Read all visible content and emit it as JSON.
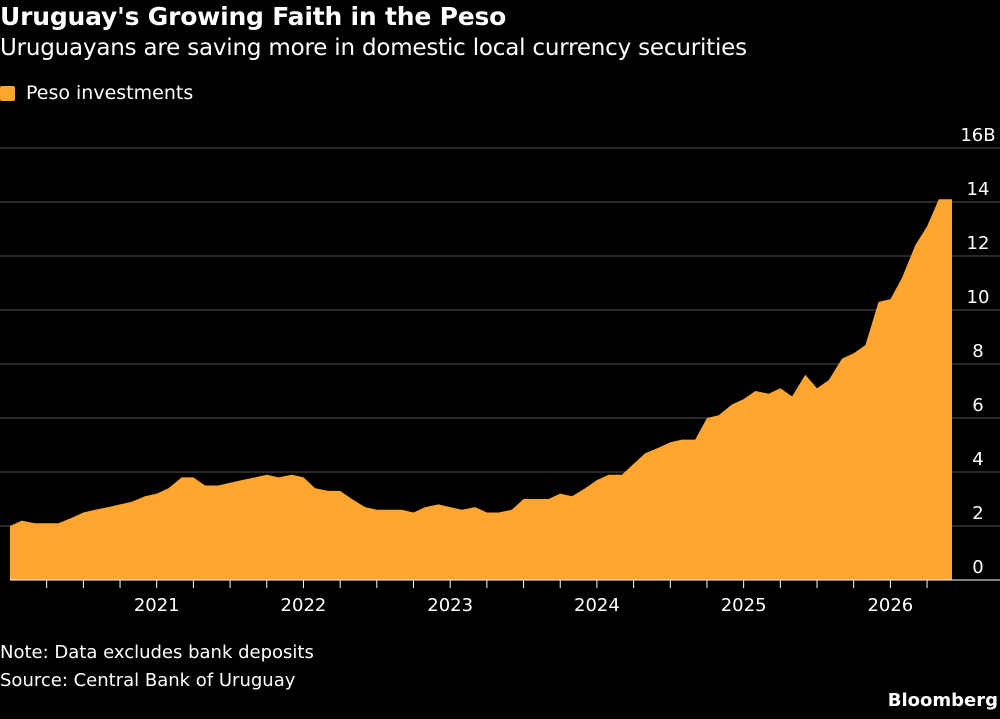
{
  "chart_data": {
    "type": "area",
    "title": "Uruguay's Growing Faith in the Peso",
    "subtitle": "Uruguayans are saving more in domestic local currency securities",
    "series": [
      {
        "name": "Peso investments",
        "color": "#FFA630",
        "x": [
          2020.0,
          2020.08,
          2020.17,
          2020.25,
          2020.33,
          2020.42,
          2020.5,
          2020.58,
          2020.67,
          2020.75,
          2020.83,
          2020.92,
          2021.0,
          2021.08,
          2021.17,
          2021.25,
          2021.33,
          2021.42,
          2021.5,
          2021.58,
          2021.67,
          2021.75,
          2021.83,
          2021.92,
          2022.0,
          2022.08,
          2022.17,
          2022.25,
          2022.33,
          2022.42,
          2022.5,
          2022.58,
          2022.67,
          2022.75,
          2022.83,
          2022.92,
          2023.0,
          2023.08,
          2023.17,
          2023.25,
          2023.33,
          2023.42,
          2023.5,
          2023.58,
          2023.67,
          2023.75,
          2023.83,
          2023.92,
          2024.0,
          2024.08,
          2024.17,
          2024.25,
          2024.33,
          2024.42,
          2024.5,
          2024.58,
          2024.67,
          2024.75,
          2024.83,
          2024.92,
          2025.0,
          2025.08,
          2025.17,
          2025.25,
          2025.33,
          2025.42,
          2025.5,
          2025.58,
          2025.67,
          2025.75,
          2025.83,
          2025.92,
          2026.0,
          2026.08,
          2026.17,
          2026.25,
          2026.33,
          2026.42
        ],
        "values": [
          2.0,
          2.2,
          2.1,
          2.1,
          2.1,
          2.3,
          2.5,
          2.6,
          2.7,
          2.8,
          2.9,
          3.1,
          3.2,
          3.4,
          3.8,
          3.8,
          3.5,
          3.5,
          3.6,
          3.7,
          3.8,
          3.9,
          3.8,
          3.9,
          3.8,
          3.4,
          3.3,
          3.3,
          3.0,
          2.7,
          2.6,
          2.6,
          2.6,
          2.5,
          2.7,
          2.8,
          2.7,
          2.6,
          2.7,
          2.5,
          2.5,
          2.6,
          3.0,
          3.0,
          3.0,
          3.2,
          3.1,
          3.4,
          3.7,
          3.9,
          3.9,
          4.3,
          4.7,
          4.9,
          5.1,
          5.2,
          5.2,
          6.0,
          6.1,
          6.5,
          6.7,
          7.0,
          6.9,
          7.1,
          6.8,
          7.6,
          7.1,
          7.4,
          8.2,
          8.4,
          8.7,
          10.3,
          10.4,
          11.2,
          12.4,
          13.1,
          14.1,
          14.1
        ]
      }
    ],
    "xticks": [
      2021,
      2022,
      2023,
      2024,
      2025,
      2026
    ],
    "xlim": [
      2020.0,
      2026.42
    ],
    "ylim": [
      0,
      16
    ],
    "yticks": [
      "0",
      "2",
      "4",
      "6",
      "8",
      "10",
      "12",
      "14",
      "16B"
    ],
    "ytick_values": [
      0,
      2,
      4,
      6,
      8,
      10,
      12,
      14,
      16
    ],
    "xlabel": "",
    "ylabel": "",
    "grid": true,
    "legend_position": "top-left",
    "note": "Note: Data excludes bank deposits",
    "source": "Source: Central Bank of Uruguay",
    "brand": "Bloomberg",
    "colors": {
      "background": "#000000",
      "text": "#ffffff",
      "grid": "#555555",
      "area": "#FFA630"
    }
  }
}
